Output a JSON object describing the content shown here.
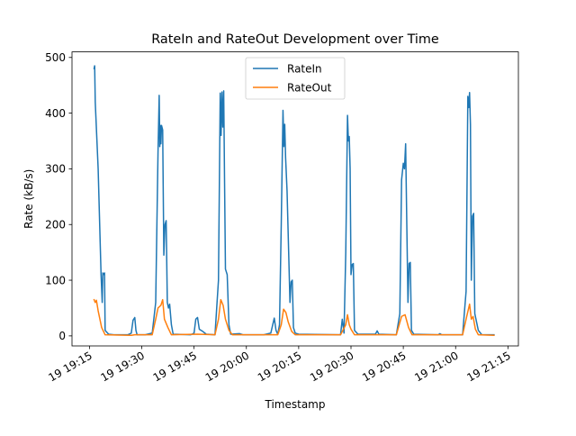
{
  "chart_data": {
    "type": "line",
    "title": "RateIn and RateOut Development over Time",
    "xlabel": "Timestamp",
    "ylabel": "Rate (kB/s)",
    "x_axis_type": "datetime",
    "xlim": [
      "2024-01-19T19:10:00",
      "2024-01-19T21:18:00"
    ],
    "ylim": [
      -18,
      510
    ],
    "x_ticks": [
      {
        "t": "2024-01-19T19:15:00",
        "label": "19 19:15"
      },
      {
        "t": "2024-01-19T19:30:00",
        "label": "19 19:30"
      },
      {
        "t": "2024-01-19T19:45:00",
        "label": "19 19:45"
      },
      {
        "t": "2024-01-19T20:00:00",
        "label": "19 20:00"
      },
      {
        "t": "2024-01-19T20:15:00",
        "label": "19 20:15"
      },
      {
        "t": "2024-01-19T20:30:00",
        "label": "19 20:30"
      },
      {
        "t": "2024-01-19T20:45:00",
        "label": "19 20:45"
      },
      {
        "t": "2024-01-19T21:00:00",
        "label": "19 21:00"
      },
      {
        "t": "2024-01-19T21:15:00",
        "label": "19 21:15"
      }
    ],
    "y_ticks": [
      0,
      100,
      200,
      300,
      400,
      500
    ],
    "grid": false,
    "legend_position": "upper center",
    "series": [
      {
        "name": "RateIn",
        "color": "#1f77b4",
        "points": [
          [
            "2024-01-19T19:16:20",
            480
          ],
          [
            "2024-01-19T19:16:30",
            485
          ],
          [
            "2024-01-19T19:16:40",
            420
          ],
          [
            "2024-01-19T19:17:30",
            300
          ],
          [
            "2024-01-19T19:18:20",
            110
          ],
          [
            "2024-01-19T19:18:40",
            60
          ],
          [
            "2024-01-19T19:18:50",
            113
          ],
          [
            "2024-01-19T19:19:10",
            110
          ],
          [
            "2024-01-19T19:19:20",
            113
          ],
          [
            "2024-01-19T19:19:30",
            10
          ],
          [
            "2024-01-19T19:20:30",
            3
          ],
          [
            "2024-01-19T19:22:00",
            2
          ],
          [
            "2024-01-19T19:26:00",
            2
          ],
          [
            "2024-01-19T19:27:00",
            5
          ],
          [
            "2024-01-19T19:27:30",
            28
          ],
          [
            "2024-01-19T19:28:00",
            33
          ],
          [
            "2024-01-19T19:28:20",
            10
          ],
          [
            "2024-01-19T19:28:40",
            2
          ],
          [
            "2024-01-19T19:31:00",
            2
          ],
          [
            "2024-01-19T19:33:00",
            5
          ],
          [
            "2024-01-19T19:34:00",
            60
          ],
          [
            "2024-01-19T19:34:40",
            330
          ],
          [
            "2024-01-19T19:35:00",
            432
          ],
          [
            "2024-01-19T19:35:10",
            340
          ],
          [
            "2024-01-19T19:35:20",
            378
          ],
          [
            "2024-01-19T19:35:30",
            345
          ],
          [
            "2024-01-19T19:35:40",
            378
          ],
          [
            "2024-01-19T19:36:00",
            370
          ],
          [
            "2024-01-19T19:36:20",
            145
          ],
          [
            "2024-01-19T19:36:40",
            200
          ],
          [
            "2024-01-19T19:37:00",
            207
          ],
          [
            "2024-01-19T19:37:20",
            60
          ],
          [
            "2024-01-19T19:37:40",
            50
          ],
          [
            "2024-01-19T19:38:00",
            57
          ],
          [
            "2024-01-19T19:38:30",
            20
          ],
          [
            "2024-01-19T19:39:00",
            3
          ],
          [
            "2024-01-19T19:44:00",
            2
          ],
          [
            "2024-01-19T19:45:00",
            5
          ],
          [
            "2024-01-19T19:45:30",
            30
          ],
          [
            "2024-01-19T19:46:00",
            33
          ],
          [
            "2024-01-19T19:46:30",
            12
          ],
          [
            "2024-01-19T19:47:30",
            8
          ],
          [
            "2024-01-19T19:48:30",
            3
          ],
          [
            "2024-01-19T19:51:00",
            2
          ],
          [
            "2024-01-19T19:52:00",
            100
          ],
          [
            "2024-01-19T19:52:30",
            436
          ],
          [
            "2024-01-19T19:52:45",
            360
          ],
          [
            "2024-01-19T19:53:00",
            438
          ],
          [
            "2024-01-19T19:53:15",
            375
          ],
          [
            "2024-01-19T19:53:30",
            440
          ],
          [
            "2024-01-19T19:53:45",
            275
          ],
          [
            "2024-01-19T19:54:00",
            120
          ],
          [
            "2024-01-19T19:54:30",
            110
          ],
          [
            "2024-01-19T19:55:00",
            20
          ],
          [
            "2024-01-19T19:55:30",
            3
          ],
          [
            "2024-01-19T19:58:00",
            4
          ],
          [
            "2024-01-19T19:59:00",
            2
          ],
          [
            "2024-01-19T20:05:00",
            2
          ],
          [
            "2024-01-19T20:07:00",
            5
          ],
          [
            "2024-01-19T20:08:00",
            32
          ],
          [
            "2024-01-19T20:08:30",
            10
          ],
          [
            "2024-01-19T20:09:00",
            3
          ],
          [
            "2024-01-19T20:09:30",
            20
          ],
          [
            "2024-01-19T20:10:00",
            200
          ],
          [
            "2024-01-19T20:10:30",
            405
          ],
          [
            "2024-01-19T20:10:45",
            340
          ],
          [
            "2024-01-19T20:11:00",
            380
          ],
          [
            "2024-01-19T20:11:15",
            320
          ],
          [
            "2024-01-19T20:11:40",
            260
          ],
          [
            "2024-01-19T20:12:30",
            60
          ],
          [
            "2024-01-19T20:12:50",
            97
          ],
          [
            "2024-01-19T20:13:10",
            100
          ],
          [
            "2024-01-19T20:13:30",
            15
          ],
          [
            "2024-01-19T20:14:00",
            5
          ],
          [
            "2024-01-19T20:15:00",
            3
          ],
          [
            "2024-01-19T20:27:00",
            2
          ],
          [
            "2024-01-19T20:27:30",
            30
          ],
          [
            "2024-01-19T20:28:00",
            5
          ],
          [
            "2024-01-19T20:28:30",
            150
          ],
          [
            "2024-01-19T20:29:00",
            396
          ],
          [
            "2024-01-19T20:29:15",
            350
          ],
          [
            "2024-01-19T20:29:30",
            358
          ],
          [
            "2024-01-19T20:29:45",
            300
          ],
          [
            "2024-01-19T20:30:00",
            110
          ],
          [
            "2024-01-19T20:30:20",
            128
          ],
          [
            "2024-01-19T20:30:40",
            130
          ],
          [
            "2024-01-19T20:31:00",
            10
          ],
          [
            "2024-01-19T20:32:00",
            3
          ],
          [
            "2024-01-19T20:37:00",
            3
          ],
          [
            "2024-01-19T20:37:30",
            9
          ],
          [
            "2024-01-19T20:38:00",
            3
          ],
          [
            "2024-01-19T20:43:00",
            2
          ],
          [
            "2024-01-19T20:44:00",
            40
          ],
          [
            "2024-01-19T20:44:30",
            280
          ],
          [
            "2024-01-19T20:45:00",
            310
          ],
          [
            "2024-01-19T20:45:20",
            300
          ],
          [
            "2024-01-19T20:45:40",
            345
          ],
          [
            "2024-01-19T20:46:00",
            200
          ],
          [
            "2024-01-19T20:46:20",
            60
          ],
          [
            "2024-01-19T20:46:40",
            130
          ],
          [
            "2024-01-19T20:47:00",
            132
          ],
          [
            "2024-01-19T20:47:20",
            10
          ],
          [
            "2024-01-19T20:48:00",
            3
          ],
          [
            "2024-01-19T20:55:00",
            2
          ],
          [
            "2024-01-19T20:55:30",
            4
          ],
          [
            "2024-01-19T20:56:00",
            2
          ],
          [
            "2024-01-19T21:02:00",
            2
          ],
          [
            "2024-01-19T21:03:00",
            80
          ],
          [
            "2024-01-19T21:03:30",
            430
          ],
          [
            "2024-01-19T21:03:45",
            410
          ],
          [
            "2024-01-19T21:04:00",
            437
          ],
          [
            "2024-01-19T21:04:15",
            380
          ],
          [
            "2024-01-19T21:04:30",
            100
          ],
          [
            "2024-01-19T21:04:50",
            215
          ],
          [
            "2024-01-19T21:05:10",
            220
          ],
          [
            "2024-01-19T21:05:30",
            40
          ],
          [
            "2024-01-19T21:06:30",
            10
          ],
          [
            "2024-01-19T21:07:30",
            2
          ],
          [
            "2024-01-19T21:11:00",
            2
          ]
        ]
      },
      {
        "name": "RateOut",
        "color": "#ff7f0e",
        "points": [
          [
            "2024-01-19T19:16:20",
            65
          ],
          [
            "2024-01-19T19:16:40",
            60
          ],
          [
            "2024-01-19T19:17:00",
            64
          ],
          [
            "2024-01-19T19:17:30",
            45
          ],
          [
            "2024-01-19T19:18:30",
            15
          ],
          [
            "2024-01-19T19:19:30",
            2
          ],
          [
            "2024-01-19T19:27:00",
            1
          ],
          [
            "2024-01-19T19:28:00",
            2
          ],
          [
            "2024-01-19T19:33:00",
            2
          ],
          [
            "2024-01-19T19:34:00",
            30
          ],
          [
            "2024-01-19T19:34:40",
            50
          ],
          [
            "2024-01-19T19:35:30",
            55
          ],
          [
            "2024-01-19T19:36:00",
            65
          ],
          [
            "2024-01-19T19:36:30",
            30
          ],
          [
            "2024-01-19T19:37:30",
            15
          ],
          [
            "2024-01-19T19:38:30",
            2
          ],
          [
            "2024-01-19T19:46:00",
            3
          ],
          [
            "2024-01-19T19:51:00",
            2
          ],
          [
            "2024-01-19T19:52:00",
            30
          ],
          [
            "2024-01-19T19:52:40",
            65
          ],
          [
            "2024-01-19T19:53:20",
            55
          ],
          [
            "2024-01-19T19:54:00",
            30
          ],
          [
            "2024-01-19T19:55:00",
            10
          ],
          [
            "2024-01-19T19:56:00",
            2
          ],
          [
            "2024-01-19T20:09:00",
            2
          ],
          [
            "2024-01-19T20:10:00",
            20
          ],
          [
            "2024-01-19T20:10:40",
            48
          ],
          [
            "2024-01-19T20:11:20",
            42
          ],
          [
            "2024-01-19T20:12:00",
            25
          ],
          [
            "2024-01-19T20:13:00",
            8
          ],
          [
            "2024-01-19T20:14:00",
            2
          ],
          [
            "2024-01-19T20:27:00",
            2
          ],
          [
            "2024-01-19T20:28:30",
            20
          ],
          [
            "2024-01-19T20:29:00",
            38
          ],
          [
            "2024-01-19T20:29:30",
            20
          ],
          [
            "2024-01-19T20:30:00",
            12
          ],
          [
            "2024-01-19T20:31:00",
            2
          ],
          [
            "2024-01-19T20:43:00",
            2
          ],
          [
            "2024-01-19T20:44:30",
            35
          ],
          [
            "2024-01-19T20:45:30",
            38
          ],
          [
            "2024-01-19T20:46:30",
            15
          ],
          [
            "2024-01-19T20:47:30",
            2
          ],
          [
            "2024-01-19T21:02:00",
            2
          ],
          [
            "2024-01-19T21:03:00",
            30
          ],
          [
            "2024-01-19T21:04:00",
            57
          ],
          [
            "2024-01-19T21:04:30",
            30
          ],
          [
            "2024-01-19T21:05:00",
            35
          ],
          [
            "2024-01-19T21:05:40",
            12
          ],
          [
            "2024-01-19T21:06:30",
            2
          ],
          [
            "2024-01-19T21:11:00",
            1
          ]
        ]
      }
    ]
  }
}
